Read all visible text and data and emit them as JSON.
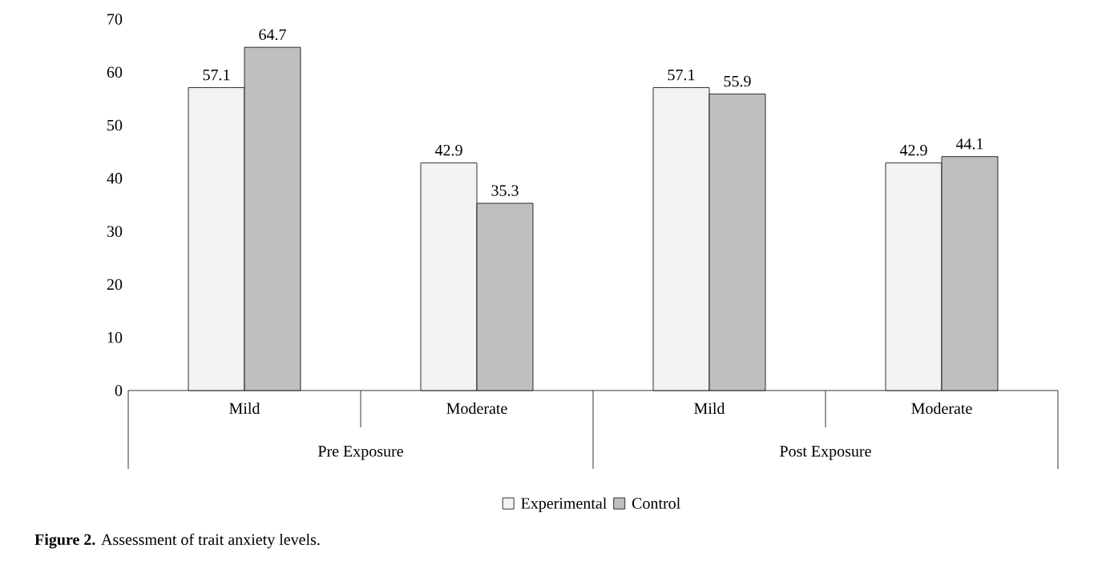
{
  "chart_data": {
    "type": "bar",
    "title": "**Figure 2.** Assessment of trait anxiety levels.",
    "categories": [
      "Mild",
      "Moderate",
      "Mild",
      "Moderate"
    ],
    "series": [
      {
        "name": "Experimental",
        "color": "#f2f2f2",
        "values": [
          57.1,
          42.9,
          57.1,
          42.9
        ]
      },
      {
        "name": "Control",
        "color": "#bfbfbf",
        "values": [
          64.7,
          35.3,
          55.9,
          44.1
        ]
      }
    ],
    "annotations": [
      "Pre Exposure",
      "Post Exposure"
    ],
    "ylim": [
      0,
      70
    ],
    "yticks": [
      0,
      10,
      20,
      30,
      40,
      50,
      60,
      70
    ],
    "data_labels": true,
    "grid": false,
    "legend": "bottom"
  }
}
